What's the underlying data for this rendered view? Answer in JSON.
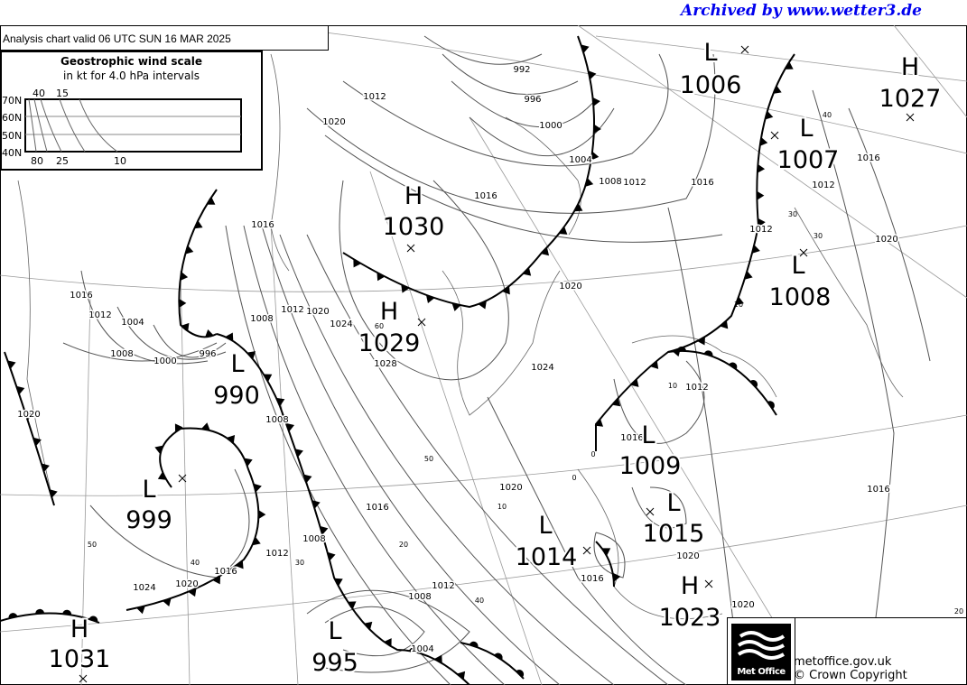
{
  "archive_note": "Archived by www.wetter3.de",
  "chart_title": "Analysis chart  valid 06 UTC SUN 16  MAR 2025",
  "wind_scale": {
    "title": "Geostrophic wind scale",
    "subtitle": "in kt for 4.0 hPa intervals",
    "latitudes": [
      "70N",
      "60N",
      "50N",
      "40N"
    ],
    "top_labels": [
      "40",
      "15"
    ],
    "bottom_labels": [
      "80",
      "25",
      "10"
    ]
  },
  "pressure_centers": [
    {
      "type": "L",
      "value": "1006"
    },
    {
      "type": "H",
      "value": "1027"
    },
    {
      "type": "L",
      "value": "1007"
    },
    {
      "type": "H",
      "value": "1030"
    },
    {
      "type": "H",
      "value": "1029"
    },
    {
      "type": "L",
      "value": "1008"
    },
    {
      "type": "L",
      "value": "990"
    },
    {
      "type": "L",
      "value": "1009"
    },
    {
      "type": "L",
      "value": "999"
    },
    {
      "type": "L",
      "value": "1015"
    },
    {
      "type": "L",
      "value": "1014"
    },
    {
      "type": "H",
      "value": "1023"
    },
    {
      "type": "H",
      "value": "1031"
    },
    {
      "type": "L",
      "value": "995"
    }
  ],
  "isobar_labels": [
    "992",
    "996",
    "1000",
    "1004",
    "1008",
    "1012",
    "1016",
    "1012",
    "1016",
    "1020",
    "1012",
    "1012",
    "1020",
    "1016",
    "1016",
    "1016",
    "1012",
    "1004",
    "1008",
    "1000",
    "996",
    "1008",
    "1012",
    "1020",
    "1024",
    "1028",
    "1020",
    "1024",
    "1012",
    "1016",
    "1020",
    "1016",
    "1012",
    "1016",
    "1020",
    "1024",
    "1008",
    "1012",
    "1008",
    "1004",
    "1016",
    "1020",
    "1020",
    "1016",
    "1020",
    "1008"
  ],
  "latitude_labels": [
    "40",
    "30",
    "50",
    "60",
    "20",
    "10",
    "0",
    "40",
    "30",
    "10",
    "50",
    "40",
    "30",
    "20",
    "10",
    "0"
  ],
  "footer": {
    "logo_text": "Met Office",
    "url": "metoffice.gov.uk",
    "copyright": "© Crown Copyright"
  },
  "colors": {
    "archive_link": "#0000ee",
    "isobar": "#555555",
    "front": "#000000",
    "grid": "#888888"
  }
}
